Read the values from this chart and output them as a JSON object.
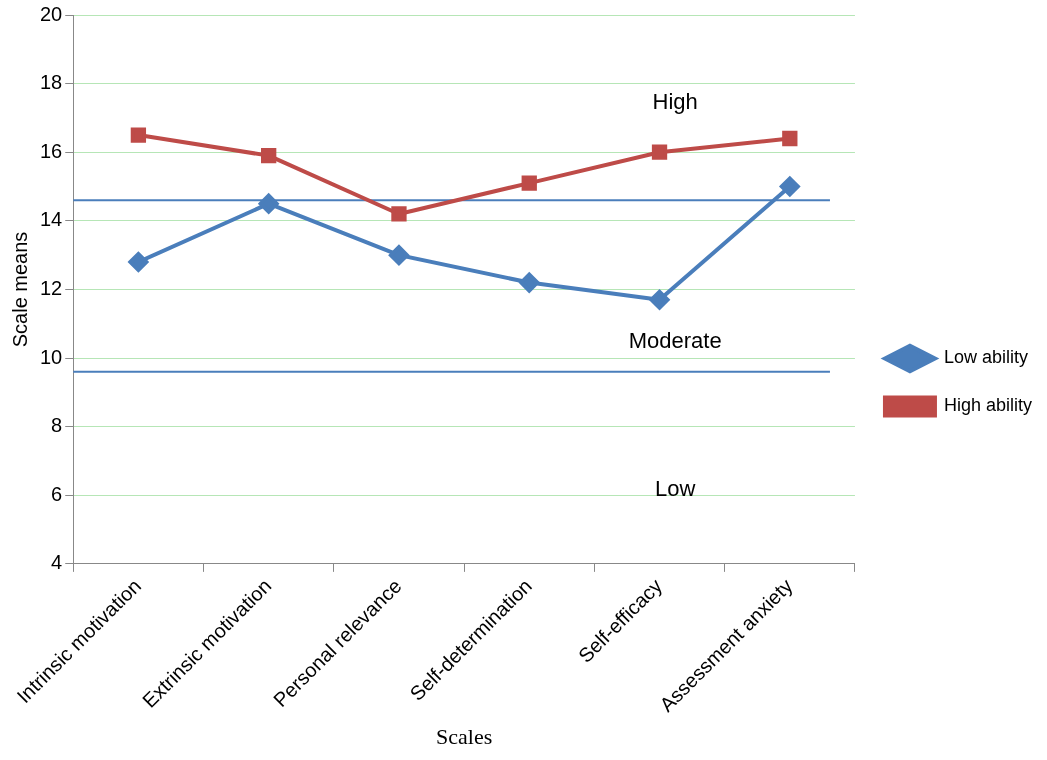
{
  "chart_data": {
    "type": "line",
    "xlabel": "Scales",
    "ylabel": "Scale means",
    "categories": [
      "Intrinsic motivation",
      "Extrinsic motivation",
      "Personal relevance",
      "Self-determination",
      "Self-efficacy",
      "Assessment anxiety"
    ],
    "series": [
      {
        "name": "Low ability",
        "color": "#4a7ebb",
        "marker": "diamond",
        "values": [
          12.8,
          14.5,
          13.0,
          12.2,
          11.7,
          15.0
        ]
      },
      {
        "name": "High ability",
        "color": "#be4b48",
        "marker": "square",
        "values": [
          16.5,
          15.9,
          14.2,
          15.1,
          16.0,
          16.4
        ]
      }
    ],
    "ylim": [
      4,
      20
    ],
    "yticks": [
      4,
      6,
      8,
      10,
      12,
      14,
      16,
      18,
      20
    ],
    "grid": "y",
    "legend": "right",
    "line_style": "solid",
    "ref_lines": [
      {
        "axis": "y",
        "value": 14.6,
        "color": "#4a7ebb"
      },
      {
        "axis": "y",
        "value": 9.6,
        "color": "#4a7ebb"
      }
    ],
    "annotations": [
      "High",
      "Moderate",
      "Low"
    ]
  }
}
